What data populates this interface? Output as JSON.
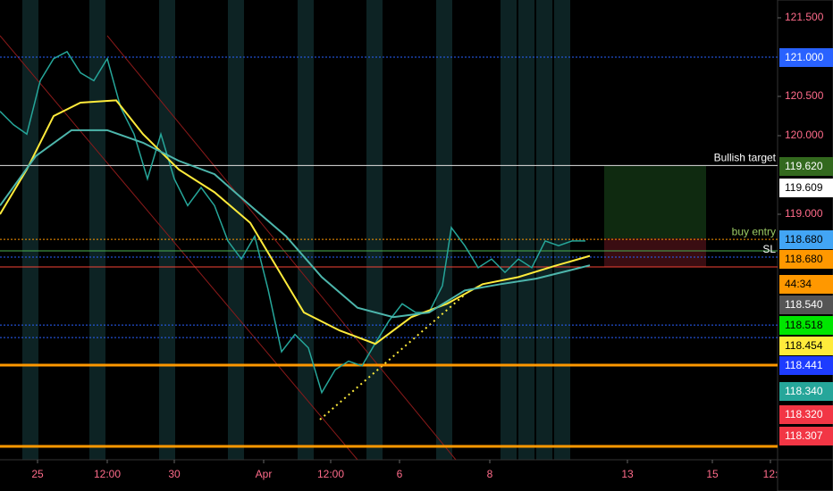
{
  "chart_data": {
    "type": "line",
    "x": [
      0,
      15,
      30,
      45,
      60,
      75,
      90,
      105,
      120,
      135,
      150,
      165,
      180,
      195,
      210,
      225,
      240,
      255,
      270,
      285,
      300,
      315,
      330,
      345,
      360,
      375,
      390,
      405,
      420,
      435,
      450,
      465,
      480,
      495,
      505,
      520,
      535,
      550,
      565,
      580,
      595,
      610,
      625,
      640,
      655
    ],
    "series": [
      {
        "color": "#26a69a",
        "values": [
          120.31,
          120.14,
          120.02,
          120.7,
          120.98,
          121.07,
          120.8,
          120.7,
          120.98,
          120.36,
          120.02,
          119.45,
          120.02,
          119.45,
          119.11,
          119.34,
          119.11,
          118.66,
          118.43,
          118.72,
          118.04,
          117.25,
          117.47,
          117.3,
          116.73,
          117.02,
          117.13,
          117.07,
          117.36,
          117.64,
          117.86,
          117.75,
          117.75,
          118.09,
          118.83,
          118.6,
          118.32,
          118.43,
          118.26,
          118.43,
          118.32,
          118.66,
          118.6,
          118.66,
          118.66
        ]
      },
      {
        "color": "#ffeb3b",
        "x": [
          0,
          30,
          60,
          90,
          130,
          160,
          200,
          240,
          280,
          310,
          340,
          380,
          420,
          460,
          500,
          540,
          580,
          620,
          660
        ],
        "values": [
          119.0,
          119.57,
          120.25,
          120.42,
          120.45,
          120.02,
          119.57,
          119.28,
          118.89,
          118.32,
          117.75,
          117.52,
          117.35,
          117.69,
          117.86,
          118.11,
          118.2,
          118.34,
          118.47
        ]
      },
      {
        "color": "#4db6ac",
        "x": [
          0,
          40,
          80,
          120,
          160,
          200,
          240,
          280,
          320,
          360,
          400,
          440,
          480,
          520,
          560,
          600,
          660
        ],
        "values": [
          119.11,
          119.74,
          120.07,
          120.07,
          119.91,
          119.68,
          119.51,
          119.11,
          118.72,
          118.2,
          117.81,
          117.69,
          117.75,
          118.03,
          118.11,
          118.18,
          118.35
        ]
      }
    ],
    "xlim": [
      0,
      870
    ],
    "xticks": [
      {
        "value": 42,
        "label": "25"
      },
      {
        "value": 120,
        "label": "12:00"
      },
      {
        "value": 195,
        "label": "30"
      },
      {
        "value": 295,
        "label": "Apr"
      },
      {
        "value": 370,
        "label": "12:00"
      },
      {
        "value": 447,
        "label": "6"
      },
      {
        "value": 548,
        "label": "8"
      },
      {
        "value": 702,
        "label": "13"
      },
      {
        "value": 797,
        "label": "15"
      },
      {
        "value": 862,
        "label": "12:"
      }
    ],
    "ylim": [
      115.875,
      121.727
    ],
    "yticks": [
      {
        "value": 121.5,
        "label": "121.500"
      },
      {
        "value": 120.5,
        "label": "120.500"
      },
      {
        "value": 120,
        "label": "120.000"
      },
      {
        "value": 119,
        "label": "119.000"
      }
    ],
    "levels": [
      {
        "value": 121.0,
        "color": "#2962ff",
        "style": "dotted"
      },
      {
        "value": 119.62,
        "color": "#e0e0e0",
        "style": "solid",
        "label": "Bullish target"
      },
      {
        "value": 118.68,
        "color": "#ff9800",
        "style": "dotted",
        "label": "buy entry"
      },
      {
        "value": 118.534,
        "color": "#4caf50",
        "style": "solid"
      },
      {
        "value": 118.455,
        "color": "#2962ff",
        "style": "dotted",
        "label": "SL"
      },
      {
        "value": 118.33,
        "color": "#f44336",
        "style": "solid"
      },
      {
        "value": 117.59,
        "color": "#2962ff",
        "style": "dotted"
      },
      {
        "value": 117.43,
        "color": "#2962ff",
        "style": "dotted"
      },
      {
        "value": 117.08,
        "color": "#ff9800",
        "style": "thick"
      },
      {
        "value": 116.045,
        "color": "#ff9800",
        "style": "thick"
      }
    ],
    "price_labels": [
      {
        "label": "121.000",
        "color": "#2962ff",
        "text": "#ffffff"
      },
      {
        "label": "119.620",
        "color": "#33691e",
        "text": "#ffffff"
      },
      {
        "label": "119.609",
        "color": "#ffffff",
        "text": "#000000"
      },
      {
        "label": "118.680",
        "color": "#42a5f5",
        "text": "#000000"
      },
      {
        "label": "118.680",
        "color": "#ff9800",
        "text": "#000000"
      },
      {
        "label": "44:34",
        "color": "#ff9800",
        "text": "#000000"
      },
      {
        "label": "118.540",
        "color": "#555555",
        "text": "#ffffff"
      },
      {
        "label": "118.518",
        "color": "#00e600",
        "text": "#000000"
      },
      {
        "label": "118.454",
        "color": "#ffeb3b",
        "text": "#000000"
      },
      {
        "label": "118.441",
        "color": "#1e3cff",
        "text": "#ffffff"
      },
      {
        "label": "118.340",
        "color": "#26a69a",
        "text": "#ffffff"
      },
      {
        "label": "118.320",
        "color": "#f23645",
        "text": "#ffffff"
      },
      {
        "label": "118.307",
        "color": "#f23645",
        "text": "#ffffff"
      }
    ]
  }
}
